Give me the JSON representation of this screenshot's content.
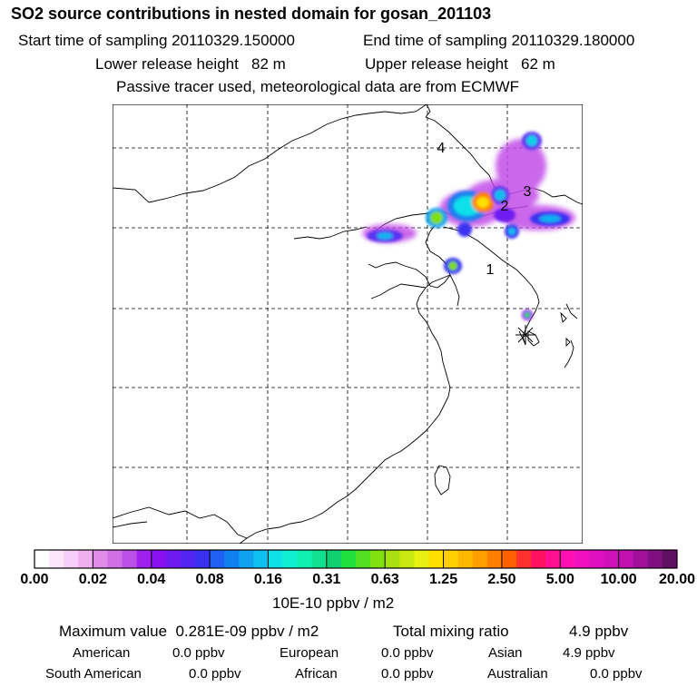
{
  "header": {
    "title": "SO2 source contributions in nested domain for gosan_201103",
    "start": "Start time of sampling 20110329.150000",
    "end": "End time of sampling 20110329.180000",
    "lower": "Lower release height   82 m",
    "upper": "Upper release height   62 m",
    "note": "Passive tracer used, meteorological data are from ECMWF"
  },
  "map": {
    "markers": [
      "1",
      "2",
      "3",
      "4"
    ]
  },
  "colorbar": {
    "tick_labels": [
      "0.00",
      "0.02",
      "0.04",
      "0.08",
      "0.16",
      "0.31",
      "0.63",
      "1.25",
      "2.50",
      "5.00",
      "10.00",
      "20.00"
    ],
    "colors": [
      "#ffffff",
      "#fbe6fb",
      "#f6cdf6",
      "#f0b0f0",
      "#e08ce8",
      "#d06ee6",
      "#bb4fe6",
      "#a020f0",
      "#8a10f0",
      "#6f1bf0",
      "#5225f0",
      "#3a30f0",
      "#2060f0",
      "#1080f0",
      "#10a0f0",
      "#10c0f0",
      "#10e0e8",
      "#10f0d0",
      "#10f0b0",
      "#10e090",
      "#10d070",
      "#20e040",
      "#50e020",
      "#80e010",
      "#a8e010",
      "#c8e810",
      "#e8f010",
      "#ffe000",
      "#ffd000",
      "#ffb800",
      "#ffa000",
      "#ff8000",
      "#ff6000",
      "#ff3030",
      "#ff1060",
      "#ff1090",
      "#ff10b0",
      "#f010c0",
      "#e010c0",
      "#d010b8",
      "#c010b0",
      "#a01098",
      "#801080",
      "#601060"
    ],
    "units": "10E-10 ppbv / m2"
  },
  "summary": {
    "max_label": "Maximum value  0.281E-09 ppbv / m2",
    "total_label": "Total mixing ratio",
    "total_value": "4.9 ppbv",
    "regions": [
      {
        "name": "American",
        "value": "0.0 ppbv"
      },
      {
        "name": "European",
        "value": "0.0 ppbv"
      },
      {
        "name": "Asian",
        "value": "4.9 ppbv"
      },
      {
        "name": "South American",
        "value": "0.0 ppbv"
      },
      {
        "name": "African",
        "value": "0.0 ppbv"
      },
      {
        "name": "Australian",
        "value": "0.0 ppbv"
      }
    ]
  }
}
